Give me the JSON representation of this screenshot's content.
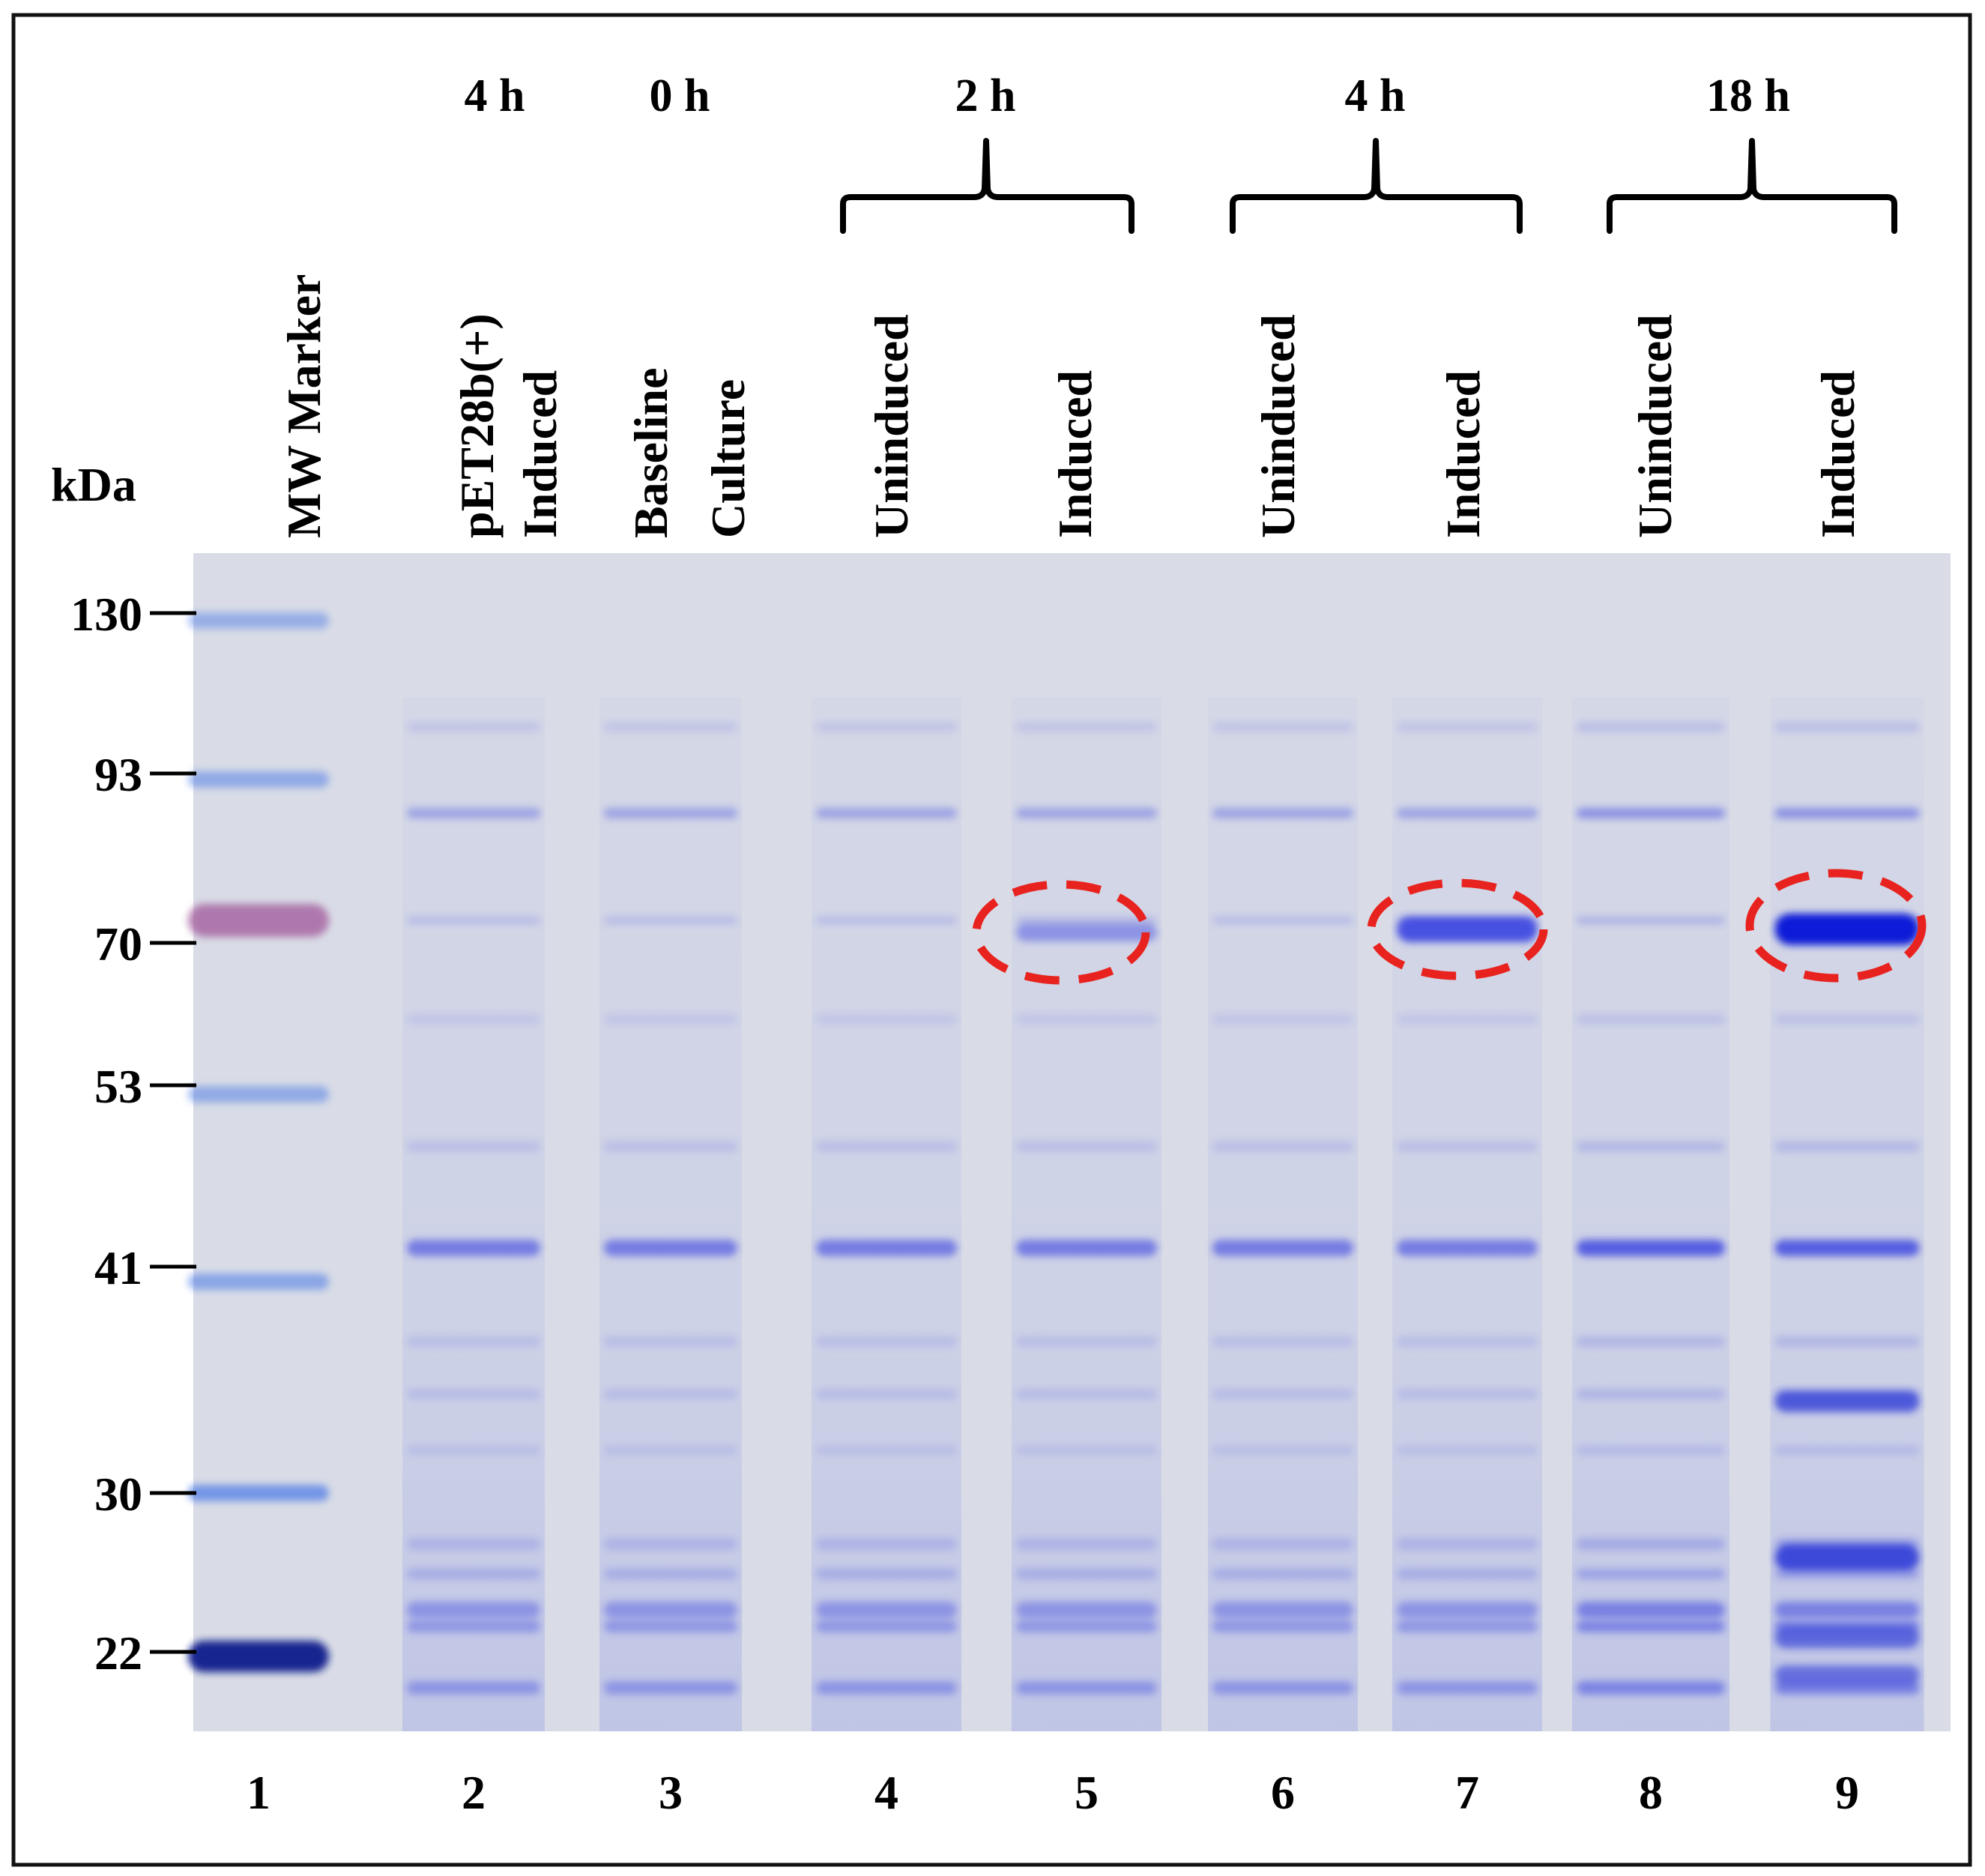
{
  "figure": {
    "unit_label": "kDa",
    "marker_ticks": [
      "130",
      "93",
      "70",
      "53",
      "41",
      "30",
      "22"
    ],
    "lanes": [
      {
        "number": "1",
        "label_lines": [
          "MW Marker"
        ],
        "time": ""
      },
      {
        "number": "2",
        "label_lines": [
          "pET28b(+)",
          "Induced"
        ],
        "time": "4 h"
      },
      {
        "number": "3",
        "label_lines": [
          "Baseline",
          "Culture"
        ],
        "time": "0 h"
      },
      {
        "number": "4",
        "label_lines": [
          "Uninduced"
        ],
        "time": ""
      },
      {
        "number": "5",
        "label_lines": [
          "Induced"
        ],
        "time": ""
      },
      {
        "number": "6",
        "label_lines": [
          "Uninduced"
        ],
        "time": ""
      },
      {
        "number": "7",
        "label_lines": [
          "Induced"
        ],
        "time": ""
      },
      {
        "number": "8",
        "label_lines": [
          "Uninduced"
        ],
        "time": ""
      },
      {
        "number": "9",
        "label_lines": [
          "Induced"
        ],
        "time": ""
      }
    ],
    "group_times": [
      "2 h",
      "4 h",
      "18 h"
    ],
    "highlight_color": "#e8231f",
    "gel_background": "#d9dce6",
    "stain_color": "#3a45e0"
  }
}
